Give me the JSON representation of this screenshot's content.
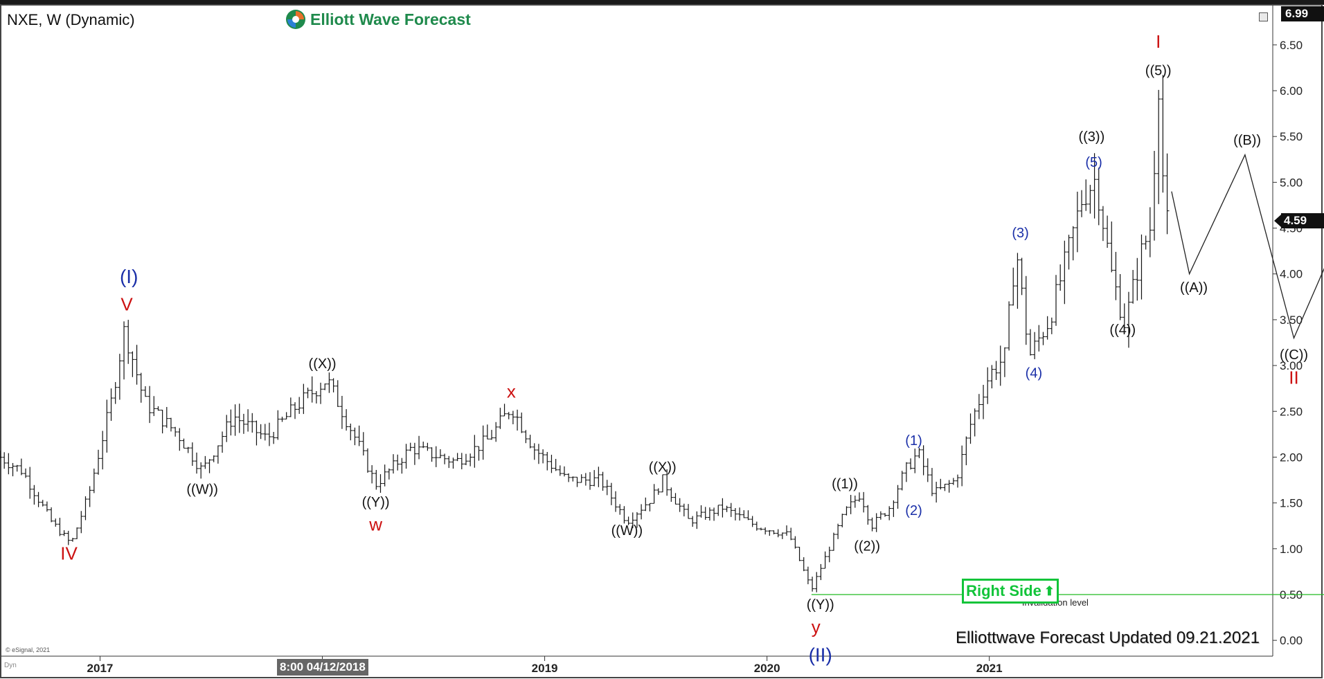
{
  "header": {
    "symbol_title": "NXE, W (Dynamic)",
    "brand_name": "Elliott Wave Forecast",
    "top_price_tag": "6.99",
    "last_price_tag": "4.59",
    "cursor_date": "8:00 04/12/2018"
  },
  "footer": {
    "updated_text": "Elliottwave Forecast Updated 09.21.2021",
    "right_side_badge": "Right Side",
    "copyright": "© eSignal, 2021",
    "dyn_mark": "Dyn"
  },
  "colors": {
    "bars": "#111111",
    "label_black": "#111111",
    "label_red": "#cc1111",
    "label_blue": "#1a2fa8",
    "invalidation_line": "#22bb22",
    "badge_green": "#12c43a",
    "brand_green": "#1f8a4c"
  },
  "chart_data": {
    "type": "ohlc",
    "ylim": [
      -0.15,
      6.99
    ],
    "y_ticks": [
      0.0,
      0.5,
      1.0,
      1.5,
      2.0,
      2.5,
      3.0,
      3.5,
      4.0,
      4.5,
      5.0,
      5.5,
      6.0,
      6.5
    ],
    "y_tick_labels": [
      "0.00",
      "0.50",
      "1.00",
      "1.50",
      "2.00",
      "2.50",
      "3.00",
      "3.50",
      "4.00",
      "4.50",
      "5.00",
      "5.50",
      "6.00",
      "6.50"
    ],
    "x_range": [
      2016.55,
      2022.25
    ],
    "x_ticks": [
      2017.0,
      2018.0,
      2019.0,
      2020.0,
      2021.0
    ],
    "x_tick_labels": [
      "2017",
      "2018",
      "2019",
      "2020",
      "2021"
    ],
    "path_anchors": [
      [
        2016.55,
        2.0
      ],
      [
        2016.65,
        1.85
      ],
      [
        2016.78,
        1.3
      ],
      [
        2016.87,
        1.05
      ],
      [
        2016.95,
        1.6
      ],
      [
        2017.05,
        2.6
      ],
      [
        2017.11,
        3.4
      ],
      [
        2017.2,
        2.6
      ],
      [
        2017.35,
        2.25
      ],
      [
        2017.46,
        1.85
      ],
      [
        2017.6,
        2.45
      ],
      [
        2017.75,
        2.2
      ],
      [
        2017.88,
        2.55
      ],
      [
        2018.02,
        2.85
      ],
      [
        2018.15,
        2.2
      ],
      [
        2018.24,
        1.7
      ],
      [
        2018.4,
        2.1
      ],
      [
        2018.6,
        1.95
      ],
      [
        2018.75,
        2.2
      ],
      [
        2018.85,
        2.55
      ],
      [
        2018.95,
        2.1
      ],
      [
        2019.1,
        1.75
      ],
      [
        2019.25,
        1.75
      ],
      [
        2019.37,
        1.3
      ],
      [
        2019.48,
        1.55
      ],
      [
        2019.53,
        1.75
      ],
      [
        2019.65,
        1.3
      ],
      [
        2019.8,
        1.45
      ],
      [
        2019.95,
        1.25
      ],
      [
        2020.1,
        1.15
      ],
      [
        2020.2,
        0.55
      ],
      [
        2020.27,
        0.95
      ],
      [
        2020.35,
        1.4
      ],
      [
        2020.42,
        1.6
      ],
      [
        2020.47,
        1.25
      ],
      [
        2020.55,
        1.45
      ],
      [
        2020.62,
        1.85
      ],
      [
        2020.68,
        2.05
      ],
      [
        2020.75,
        1.6
      ],
      [
        2020.85,
        1.75
      ],
      [
        2020.92,
        2.4
      ],
      [
        2021.0,
        2.9
      ],
      [
        2021.07,
        3.1
      ],
      [
        2021.12,
        4.3
      ],
      [
        2021.18,
        3.1
      ],
      [
        2021.27,
        3.5
      ],
      [
        2021.35,
        4.2
      ],
      [
        2021.42,
        4.85
      ],
      [
        2021.48,
        5.05
      ],
      [
        2021.55,
        4.0
      ],
      [
        2021.61,
        3.45
      ],
      [
        2021.68,
        4.2
      ],
      [
        2021.73,
        4.55
      ],
      [
        2021.76,
        6.2
      ],
      [
        2021.78,
        5.1
      ],
      [
        2021.8,
        4.55
      ]
    ],
    "projection": [
      [
        2021.82,
        4.9
      ],
      [
        2021.9,
        4.0
      ],
      [
        2022.15,
        5.3
      ],
      [
        2022.37,
        3.3
      ],
      [
        2022.9,
        6.25
      ]
    ],
    "invalidation": {
      "level": 0.5,
      "x_start": 2020.2,
      "x_end": 2022.58,
      "value_label": "0.50",
      "text": "Invalidation level"
    },
    "annotations": [
      {
        "text": "(I)",
        "x": 2017.13,
        "y": 3.9,
        "color": "blue",
        "size": 28
      },
      {
        "text": "V",
        "x": 2017.12,
        "y": 3.6,
        "color": "red",
        "size": 26
      },
      {
        "text": "IV",
        "x": 2016.86,
        "y": 0.88,
        "color": "red",
        "size": 26
      },
      {
        "text": "((W))",
        "x": 2017.46,
        "y": 1.6,
        "color": "black",
        "size": 20
      },
      {
        "text": "((X))",
        "x": 2018.0,
        "y": 2.97,
        "color": "black",
        "size": 20
      },
      {
        "text": "((Y))",
        "x": 2018.24,
        "y": 1.46,
        "color": "black",
        "size": 20
      },
      {
        "text": "w",
        "x": 2018.24,
        "y": 1.2,
        "color": "red",
        "size": 26
      },
      {
        "text": "x",
        "x": 2018.85,
        "y": 2.65,
        "color": "red",
        "size": 26
      },
      {
        "text": "((W))",
        "x": 2019.37,
        "y": 1.15,
        "color": "black",
        "size": 20
      },
      {
        "text": "((X))",
        "x": 2019.53,
        "y": 1.84,
        "color": "black",
        "size": 20
      },
      {
        "text": "((Y))",
        "x": 2020.24,
        "y": 0.34,
        "color": "black",
        "size": 20
      },
      {
        "text": "y",
        "x": 2020.22,
        "y": 0.08,
        "color": "red",
        "size": 26
      },
      {
        "text": "(II)",
        "x": 2020.24,
        "y": -0.23,
        "color": "blue",
        "size": 28
      },
      {
        "text": "((1))",
        "x": 2020.35,
        "y": 1.66,
        "color": "black",
        "size": 20
      },
      {
        "text": "((2))",
        "x": 2020.45,
        "y": 0.98,
        "color": "black",
        "size": 20
      },
      {
        "text": "(1)",
        "x": 2020.66,
        "y": 2.13,
        "color": "blue",
        "size": 20
      },
      {
        "text": "(2)",
        "x": 2020.66,
        "y": 1.37,
        "color": "blue",
        "size": 20
      },
      {
        "text": "(3)",
        "x": 2021.14,
        "y": 4.4,
        "color": "blue",
        "size": 20
      },
      {
        "text": "(4)",
        "x": 2021.2,
        "y": 2.87,
        "color": "blue",
        "size": 20
      },
      {
        "text": "((3))",
        "x": 2021.46,
        "y": 5.45,
        "color": "black",
        "size": 20
      },
      {
        "text": "(5)",
        "x": 2021.47,
        "y": 5.17,
        "color": "blue",
        "size": 20
      },
      {
        "text": "((4))",
        "x": 2021.6,
        "y": 3.34,
        "color": "black",
        "size": 20
      },
      {
        "text": "I",
        "x": 2021.76,
        "y": 6.47,
        "color": "red",
        "size": 26
      },
      {
        "text": "((5))",
        "x": 2021.76,
        "y": 6.17,
        "color": "black",
        "size": 20
      },
      {
        "text": "((A))",
        "x": 2021.92,
        "y": 3.8,
        "color": "black",
        "size": 20
      },
      {
        "text": "((B))",
        "x": 2022.16,
        "y": 5.41,
        "color": "black",
        "size": 20
      },
      {
        "text": "((C))",
        "x": 2022.37,
        "y": 3.07,
        "color": "black",
        "size": 20
      },
      {
        "text": "II",
        "x": 2022.37,
        "y": 2.8,
        "color": "red",
        "size": 26
      }
    ]
  }
}
